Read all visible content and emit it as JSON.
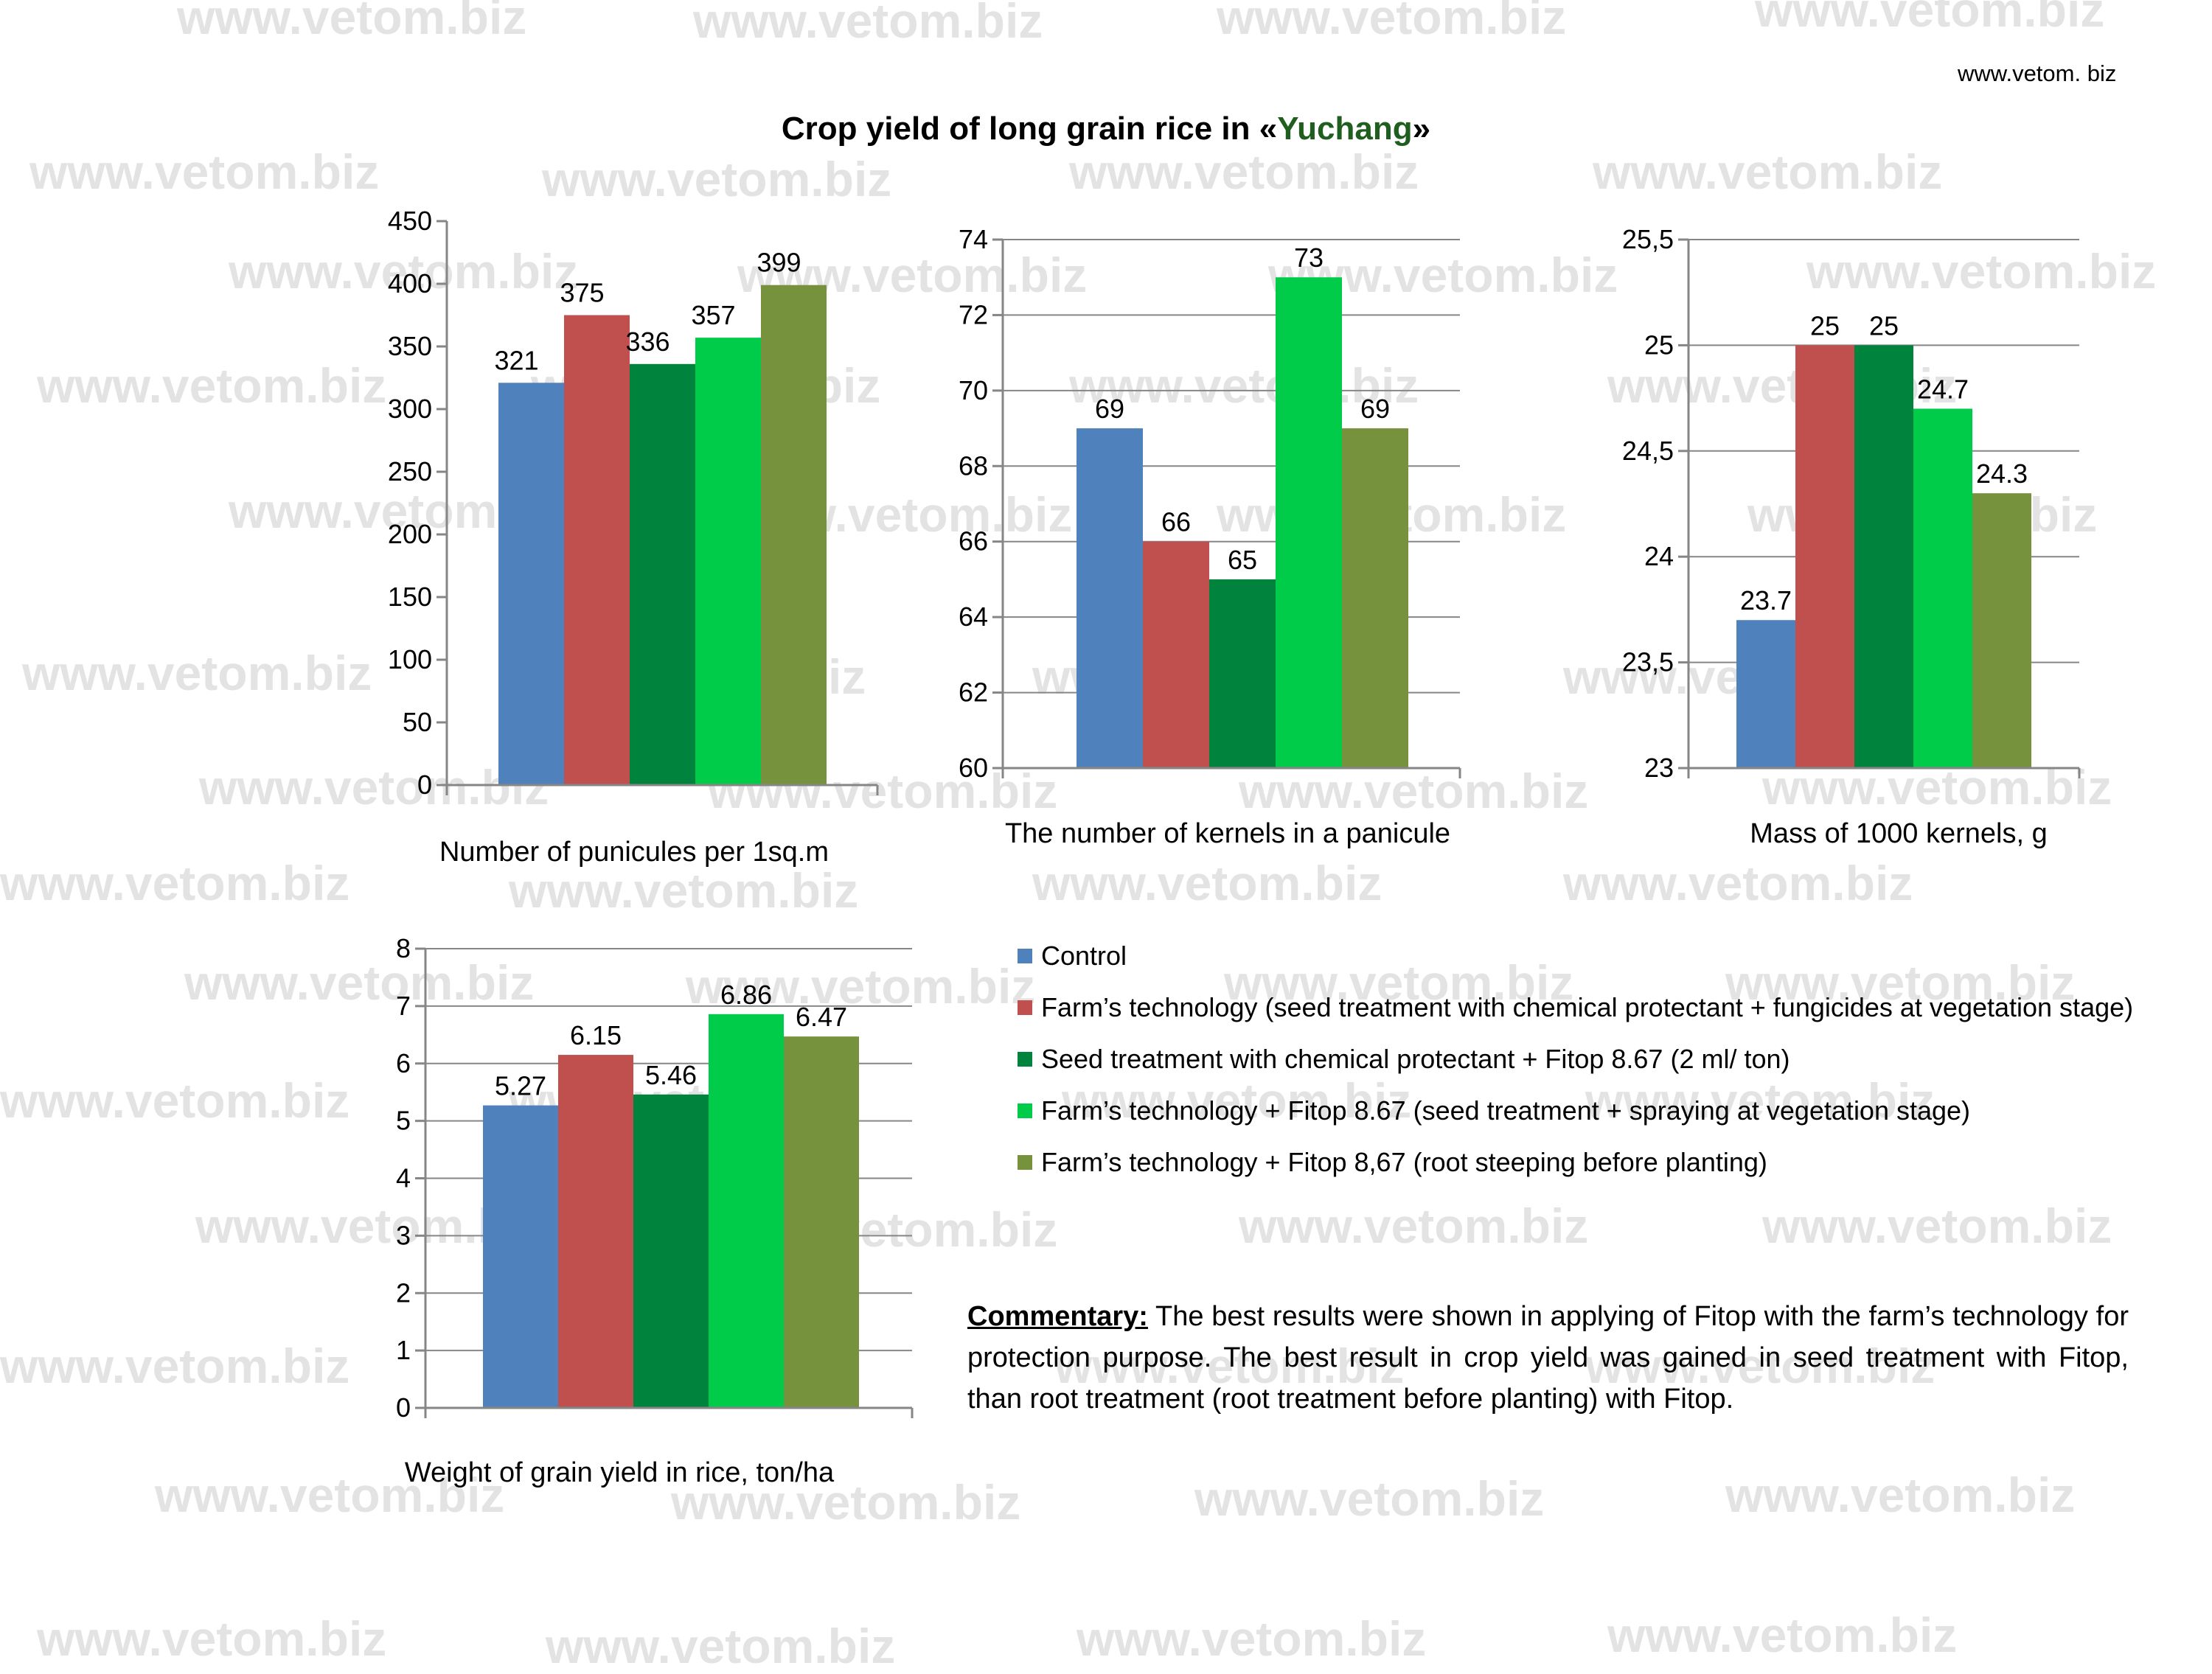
{
  "watermark_text": "www.vetom.biz",
  "site_url": "www.vetom. biz",
  "title": {
    "prefix": "Crop yield of long grain rice in «",
    "highlight": "Yuchang",
    "suffix": "»"
  },
  "colors": {
    "control": "#4f81bd",
    "farm_technology": "#c0504d",
    "seed_fitop": "#00843d",
    "farm_fitop_spray": "#00cc4a",
    "farm_fitop_root": "#76923c",
    "title_highlight": "#1f5e1f"
  },
  "legend": [
    {
      "label": "Control",
      "color": "#4f81bd"
    },
    {
      "label": "Farm’s technology (seed treatment with chemical protectant + fungicides  at vegetation stage)",
      "color": "#c0504d"
    },
    {
      "label": "Seed treatment with chemical protectant + Fitop 8.67 (2  ml/ ton)",
      "color": "#00843d"
    },
    {
      "label": "Farm’s technology + Fitop 8.67 (seed treatment + spraying at vegetation stage)",
      "color": "#00cc4a"
    },
    {
      "label": "Farm’s technology + Fitop 8,67 (root steeping before planting)",
      "color": "#76923c"
    }
  ],
  "chart_data": [
    {
      "type": "bar",
      "title": "Number of punicules per 1sq.m",
      "series": [
        "Control",
        "Farm’s technology",
        "Seed treatment + Fitop",
        "Farm’s technology + Fitop (spraying)",
        "Farm’s technology + Fitop (root steeping)"
      ],
      "values": [
        321,
        375,
        336,
        357,
        399
      ],
      "value_labels": [
        "321",
        "375",
        "336",
        "357",
        "399"
      ],
      "ylim": [
        0,
        450
      ],
      "yticks": [
        0,
        50,
        100,
        150,
        200,
        250,
        300,
        350,
        400,
        450
      ],
      "ytick_labels": [
        "0",
        "50",
        "100",
        "150",
        "200",
        "250",
        "300",
        "350",
        "400",
        "450"
      ],
      "grid": false
    },
    {
      "type": "bar",
      "title": "The number of kernels in a panicule",
      "series": [
        "Control",
        "Farm’s technology",
        "Seed treatment + Fitop",
        "Farm’s technology + Fitop (spraying)",
        "Farm’s technology + Fitop (root steeping)"
      ],
      "values": [
        69,
        66,
        65,
        73,
        69
      ],
      "value_labels": [
        "69",
        "66",
        "65",
        "73",
        "69"
      ],
      "ylim": [
        60,
        74
      ],
      "yticks": [
        60,
        62,
        64,
        66,
        68,
        70,
        72,
        74
      ],
      "ytick_labels": [
        "60",
        "62",
        "64",
        "66",
        "68",
        "70",
        "72",
        "74"
      ],
      "grid": true
    },
    {
      "type": "bar",
      "title": "Mass of 1000 kernels, g",
      "series": [
        "Control",
        "Farm’s technology",
        "Seed treatment + Fitop",
        "Farm’s technology + Fitop (spraying)",
        "Farm’s technology + Fitop (root steeping)"
      ],
      "values": [
        23.7,
        25,
        25,
        24.7,
        24.3
      ],
      "value_labels": [
        "23.7",
        "25",
        "25",
        "24.7",
        "24.3"
      ],
      "ylim": [
        23,
        25.5
      ],
      "yticks": [
        23,
        23.5,
        24,
        24.5,
        25,
        25.5
      ],
      "ytick_labels": [
        "23",
        "23,5",
        "24",
        "24,5",
        "25",
        "25,5"
      ],
      "grid": true
    },
    {
      "type": "bar",
      "title": "Weight of grain yield in rice, ton/ha",
      "series": [
        "Control",
        "Farm’s technology",
        "Seed treatment + Fitop",
        "Farm’s technology + Fitop (spraying)",
        "Farm’s technology + Fitop (root steeping)"
      ],
      "values": [
        5.27,
        6.15,
        5.46,
        6.86,
        6.47
      ],
      "value_labels": [
        "5.27",
        "6.15",
        "5.46",
        "6.86",
        "6.47"
      ],
      "ylim": [
        0,
        8
      ],
      "yticks": [
        0,
        1,
        2,
        3,
        4,
        5,
        6,
        7,
        8
      ],
      "ytick_labels": [
        "0",
        "1",
        "2",
        "3",
        "4",
        "5",
        "6",
        "7",
        "8"
      ],
      "grid": true
    }
  ],
  "commentary": {
    "heading": "Commentary:",
    "text": " The best results were shown in applying of Fitop with the farm’s technology for protection purpose. The best result in crop yield was gained in seed treatment with Fitop, than root treatment (root treatment before planting) with Fitop."
  }
}
